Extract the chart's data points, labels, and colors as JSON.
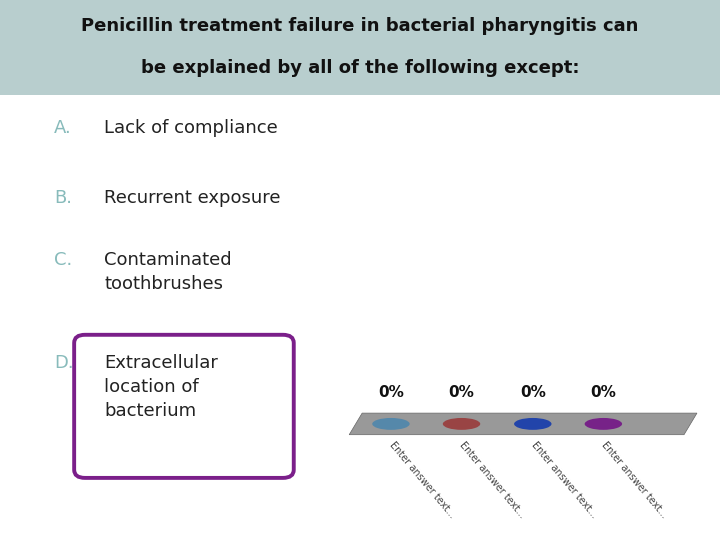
{
  "title_line1": "Penicillin treatment failure in bacterial pharyngitis can",
  "title_line2": "be explained by all of the following except:",
  "title_bg": "#b8cece",
  "bg_color": "#ffffff",
  "options": [
    {
      "letter": "A.",
      "text": "Lack of compliance",
      "letter_color": "#88bbbb",
      "text_color": "#222222",
      "boxed": false
    },
    {
      "letter": "B.",
      "text": "Recurrent exposure",
      "letter_color": "#88bbbb",
      "text_color": "#222222",
      "boxed": false
    },
    {
      "letter": "C.",
      "text": "Contaminated\ntoothbrushes",
      "letter_color": "#88bbbb",
      "text_color": "#222222",
      "boxed": false
    },
    {
      "letter": "D.",
      "text": "Extracellular\nlocation of\nbacterium",
      "letter_color": "#88bbbb",
      "text_color": "#222222",
      "boxed": true
    }
  ],
  "box_color": "#7B1F8A",
  "poll_percentages": [
    "0%",
    "0%",
    "0%",
    "0%"
  ],
  "poll_dot_colors": [
    "#5588aa",
    "#994444",
    "#2244aa",
    "#772288"
  ],
  "poll_labels": [
    "Enter answer text...",
    "Enter answer text...",
    "Enter answer text...",
    "Enter answer text..."
  ],
  "bar_color": "#999999",
  "title_fontsize": 13,
  "option_letter_fontsize": 13,
  "option_text_fontsize": 13,
  "pct_fontsize": 11,
  "label_fontsize": 7
}
